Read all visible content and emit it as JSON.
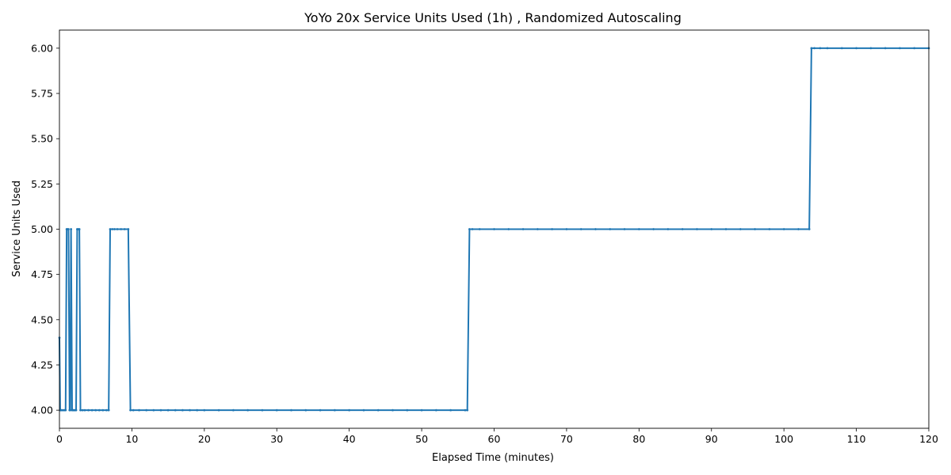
{
  "chart_data": {
    "type": "line",
    "title": "YoYo 20x Service Units Used (1h) , Randomized Autoscaling",
    "xlabel": "Elapsed Time (minutes)",
    "ylabel": "Service Units Used",
    "xlim": [
      0,
      120
    ],
    "ylim": [
      3.9,
      6.1
    ],
    "x_ticks": [
      0,
      10,
      20,
      30,
      40,
      50,
      60,
      70,
      80,
      90,
      100,
      110,
      120
    ],
    "x_tick_labels": [
      "0",
      "10",
      "20",
      "30",
      "40",
      "50",
      "60",
      "70",
      "80",
      "90",
      "100",
      "110",
      "120"
    ],
    "y_ticks": [
      4.0,
      4.25,
      4.5,
      4.75,
      5.0,
      5.25,
      5.5,
      5.75,
      6.0
    ],
    "y_tick_labels": [
      "4.00",
      "4.25",
      "4.50",
      "4.75",
      "5.00",
      "5.25",
      "5.50",
      "5.75",
      "6.00"
    ],
    "grid": false,
    "legend": "none",
    "line_color": "#1f77b4",
    "series": [
      {
        "x": [
          0.0,
          0.1,
          0.2,
          0.3,
          0.5,
          0.7,
          0.85,
          1.0,
          1.1,
          1.25,
          1.4,
          1.5,
          1.6,
          1.75,
          1.9,
          2.0,
          2.15,
          2.3,
          2.45,
          2.6,
          2.75,
          2.9,
          3.2,
          3.5,
          4.0,
          4.5,
          5.0,
          5.5,
          6.0,
          6.5,
          6.8,
          7.0,
          7.3,
          7.6,
          8.0,
          8.5,
          9.0,
          9.5,
          9.8,
          10.2,
          11.0,
          12.0,
          13.0,
          14.0,
          15.0,
          16.0,
          17.0,
          18.0,
          19.0,
          20.0,
          22.0,
          24.0,
          26.0,
          28.0,
          30.0,
          32.0,
          34.0,
          36.0,
          38.0,
          40.0,
          42.0,
          44.0,
          46.0,
          48.0,
          50.0,
          52.0,
          54.0,
          56.0,
          56.3,
          56.6,
          57.0,
          58.0,
          60.0,
          62.0,
          64.0,
          66.0,
          68.0,
          70.0,
          72.0,
          74.0,
          76.0,
          78.0,
          80.0,
          82.0,
          84.0,
          86.0,
          88.0,
          90.0,
          92.0,
          94.0,
          96.0,
          98.0,
          100.0,
          102.0,
          103.5,
          103.8,
          104.2,
          105.0,
          106.0,
          108.0,
          110.0,
          112.0,
          114.0,
          116.0,
          118.0,
          120.0
        ],
        "values": [
          4.4,
          4.0,
          4.0,
          4.0,
          4.0,
          4.0,
          4.0,
          5.0,
          5.0,
          5.0,
          4.0,
          4.0,
          5.0,
          4.0,
          4.0,
          4.0,
          4.0,
          4.0,
          5.0,
          5.0,
          5.0,
          4.0,
          4.0,
          4.0,
          4.0,
          4.0,
          4.0,
          4.0,
          4.0,
          4.0,
          4.0,
          5.0,
          5.0,
          5.0,
          5.0,
          5.0,
          5.0,
          5.0,
          4.0,
          4.0,
          4.0,
          4.0,
          4.0,
          4.0,
          4.0,
          4.0,
          4.0,
          4.0,
          4.0,
          4.0,
          4.0,
          4.0,
          4.0,
          4.0,
          4.0,
          4.0,
          4.0,
          4.0,
          4.0,
          4.0,
          4.0,
          4.0,
          4.0,
          4.0,
          4.0,
          4.0,
          4.0,
          4.0,
          4.0,
          5.0,
          5.0,
          5.0,
          5.0,
          5.0,
          5.0,
          5.0,
          5.0,
          5.0,
          5.0,
          5.0,
          5.0,
          5.0,
          5.0,
          5.0,
          5.0,
          5.0,
          5.0,
          5.0,
          5.0,
          5.0,
          5.0,
          5.0,
          5.0,
          5.0,
          5.0,
          6.0,
          6.0,
          6.0,
          6.0,
          6.0,
          6.0,
          6.0,
          6.0,
          6.0,
          6.0,
          6.0
        ]
      }
    ]
  }
}
